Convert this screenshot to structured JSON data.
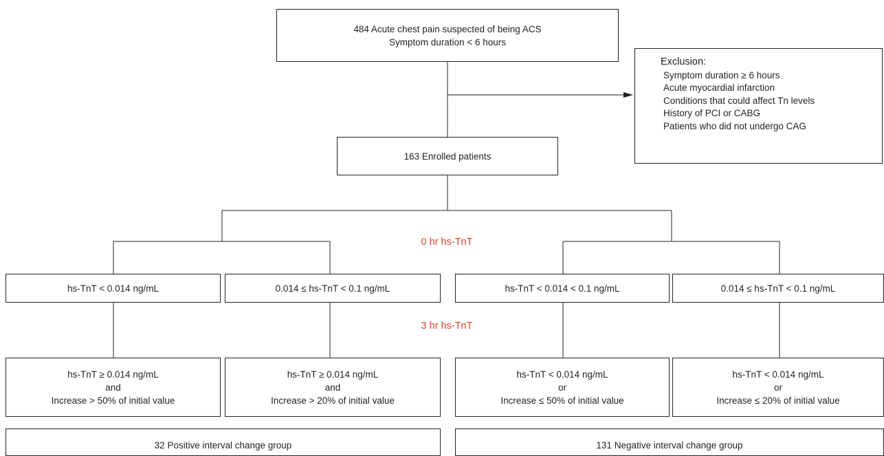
{
  "top": {
    "line1": "484 Acute chest pain suspected of being ACS",
    "line2": "Symptom duration < 6 hours"
  },
  "exclusion": {
    "title": "Exclusion:",
    "items": [
      "Symptom duration ≥ 6 hours",
      "Acute myocardial infarction",
      "Conditions that could affect Tn levels",
      "History of PCI or CABG",
      "Patients who did not undergo CAG"
    ]
  },
  "enrolled": "163 Enrolled patients",
  "labels": {
    "zero_hr": "0 hr hs-TnT",
    "three_hr": "3 hr hs-TnT"
  },
  "tier1": [
    "hs-TnT < 0.014 ng/mL",
    "0.014 ≤ hs-TnT < 0.1 ng/mL",
    "hs-TnT < 0.014 < 0.1 ng/mL",
    "0.014 ≤ hs-TnT < 0.1 ng/mL"
  ],
  "tier2": [
    {
      "l1": "hs-TnT ≥ 0.014 ng/mL",
      "l2": "and",
      "l3": "Increase > 50% of initial value"
    },
    {
      "l1": "hs-TnT ≥ 0.014 ng/mL",
      "l2": "and",
      "l3": "Increase > 20% of initial value"
    },
    {
      "l1": "hs-TnT < 0.014 ng/mL",
      "l2": "or",
      "l3": "Increase ≤ 50% of initial value"
    },
    {
      "l1": "hs-TnT < 0.014 ng/mL",
      "l2": "or",
      "l3": "Increase ≤ 20% of initial value"
    }
  ],
  "groups": {
    "positive": "32 Positive interval change group",
    "negative": "131 Negative interval change group"
  },
  "colors": {
    "line": "#231f20",
    "accent_red": "#d9432b"
  }
}
